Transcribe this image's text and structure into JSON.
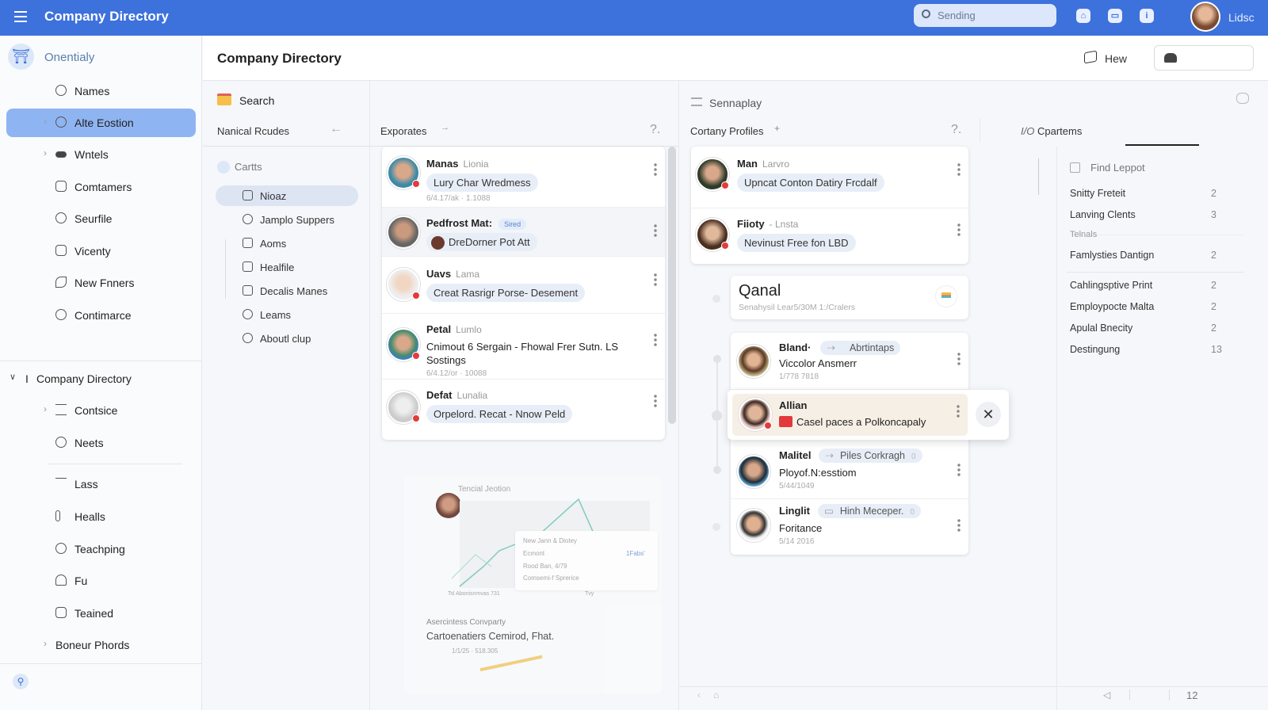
{
  "topbar": {
    "title": "Company Directory",
    "search_placeholder": "Sending",
    "user_name": "Lidsc"
  },
  "sidebar": {
    "brand": "Onentialy",
    "items": [
      {
        "label": "Names",
        "icon": "circle-icon"
      },
      {
        "label": "Alte Eostion",
        "icon": "globe-icon",
        "active": true,
        "expandable": true
      },
      {
        "label": "Wntels",
        "icon": "building-icon",
        "expandable": true
      },
      {
        "label": "Comtamers",
        "icon": "card-icon"
      },
      {
        "label": "Seurfile",
        "icon": "smile-icon"
      },
      {
        "label": "Vicenty",
        "icon": "calendar-icon"
      },
      {
        "label": "New Fnners",
        "icon": "plant-icon"
      },
      {
        "label": "Contimarce",
        "icon": "dish-icon"
      }
    ],
    "section_title": "Company Directory",
    "section_prefix": "I",
    "section_items": [
      {
        "label": "Contsice",
        "icon": "list-icon",
        "expandable": true
      },
      {
        "label": "Neets",
        "icon": "target-icon"
      },
      {
        "label": "Lass",
        "icon": "wave-icon"
      },
      {
        "label": "Healls",
        "icon": "pin-icon"
      },
      {
        "label": "Teachping",
        "icon": "gear-icon"
      },
      {
        "label": "Fu",
        "icon": "user-icon"
      },
      {
        "label": "Teained",
        "icon": "copy-icon"
      },
      {
        "label": "Boneur Phords",
        "icon": "",
        "expandable": true
      }
    ]
  },
  "header": {
    "title": "Company Directory",
    "hew_label": "Hew"
  },
  "panel_left": {
    "search_title": "Search",
    "column_title": "Nanical Rcudes",
    "group_label": "Cartts",
    "tree": [
      "Nioaz",
      "Jamplo Suppers",
      "Aoms",
      "Healfile",
      "Decalis Manes",
      "Leams",
      "Aboutl clup"
    ]
  },
  "col_exporates": {
    "title": "Exporates",
    "help": "?.",
    "cards": [
      {
        "name": "Manas",
        "sub": "Lionia",
        "pill": "Lury Char Wredmess",
        "meta": "6/4.17/ak · 1.1088"
      },
      {
        "name": "Pedfrost Mat:",
        "tag": "Sired",
        "pill": "DreDorner Pot Att"
      },
      {
        "name": "Uavs",
        "sub": "Lama",
        "pill": "Creat Rasrigr Porse- Desement"
      },
      {
        "name": "Petal",
        "sub": "Lumlo",
        "pill": "Cnimout 6 Sergain - Fhowal Frer Sutn. LS Sostings",
        "meta": "6/4.12/or · 10088"
      },
      {
        "name": "Defat",
        "sub": "Lunalia",
        "pill": "Orpelord. Recat - Nnow Peld"
      }
    ],
    "chart_preview": {
      "title": "Tencial Jeotion",
      "popup_title": "New Jann & Diotey",
      "popup_lines": [
        "Ecmont",
        "Rood Ban, 4/79",
        "Comsemi-f Sprerice"
      ],
      "popup_value": "1Fabs'",
      "axis_text": "Tsl Abonisnmvas 731",
      "axis_mark": "Tvy",
      "card2_label": "Asercintess Convparty",
      "card2_title": "Cartoenatiers Cemirod, Fhat.",
      "card2_meta": "1/1/25 · 518.305"
    }
  },
  "col_profiles": {
    "title": "Cortany Profiles",
    "title2": "Sennaplay",
    "help": "?.",
    "cards": [
      {
        "name": "Man",
        "sub": "Larvro",
        "pill": "Upncat Conton Datiry Frcdalf"
      },
      {
        "name": "Fiioty",
        "sub": "- Lnsta",
        "pill": "Nevinust Free fon LBD"
      }
    ],
    "group": {
      "title": "Qanal",
      "subtitle": "Senahysil Lear5/30M 1:/Cralers"
    },
    "group_cards": [
      {
        "name": "Bland·",
        "chip": "Abrtintaps",
        "line2": "Viccolor Ansmerr",
        "meta": "1/778 7818"
      },
      {
        "name": "Allian",
        "line2": "Casel paces a Polkoncapaly",
        "highlight": true
      },
      {
        "name": "Malitel",
        "chip": "Piles Corkragh",
        "chip_count": "0",
        "line2": "Ployof.N:esstiom",
        "meta": "5/44/1049"
      },
      {
        "name": "Linglit",
        "chip": "Hinh Meceper.",
        "chip_count": "0",
        "line2": "Foritance",
        "meta": "5/14 2016"
      }
    ]
  },
  "right_panel": {
    "tab": "Cpartems",
    "tab_prefix": "I/O",
    "find_label": "Find Leppot",
    "items": [
      {
        "label": "Snitty Freteit",
        "count": "2"
      },
      {
        "label": "Lanving Clents",
        "count": "3"
      },
      {
        "label": "Telnals",
        "count": "",
        "muted": true
      },
      {
        "label": "Famlysties Dantign",
        "count": "2"
      },
      {
        "label": "Cahlingsptive Print",
        "count": "2"
      },
      {
        "label": "Employpocte Malta",
        "count": "2"
      },
      {
        "label": "Apulal Bnecity",
        "count": "2"
      },
      {
        "label": "Destingung",
        "count": "13"
      }
    ],
    "page": "12"
  },
  "colors": {
    "accent": "#3d71dc",
    "active_item": "#8fb4f2",
    "highlight_card": "#f6efe6",
    "status_dot": "#e23b3b"
  }
}
